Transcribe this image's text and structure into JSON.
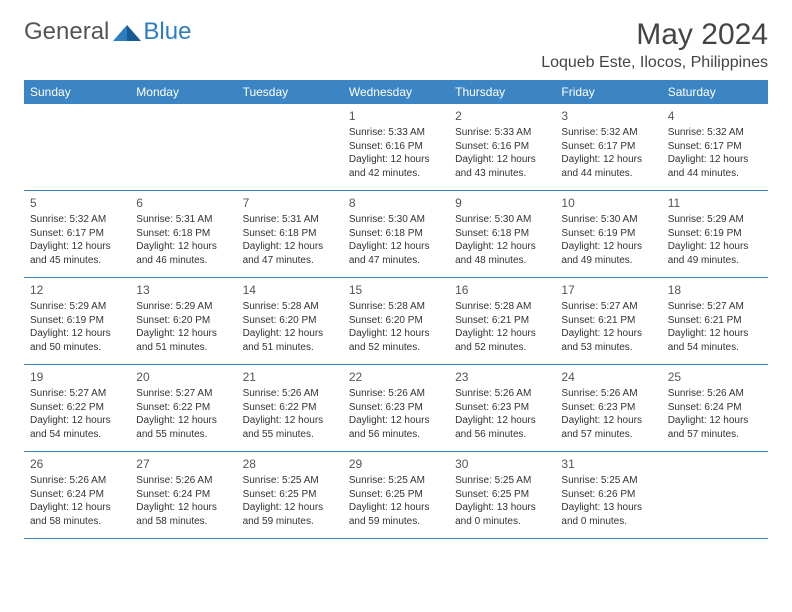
{
  "logo": {
    "text_general": "General",
    "text_blue": "Blue"
  },
  "title": "May 2024",
  "location": "Loqueb Este, Ilocos, Philippines",
  "colors": {
    "header_bar": "#3b85c4",
    "header_text": "#ffffff",
    "body_text": "#333333",
    "title_text": "#444444",
    "logo_gray": "#555555",
    "logo_blue": "#2d7dc0",
    "border": "#3b85c4",
    "background": "#ffffff"
  },
  "weekdays": [
    "Sunday",
    "Monday",
    "Tuesday",
    "Wednesday",
    "Thursday",
    "Friday",
    "Saturday"
  ],
  "weeks": [
    [
      {
        "day": "",
        "sunrise": "",
        "sunset": "",
        "daylight": ""
      },
      {
        "day": "",
        "sunrise": "",
        "sunset": "",
        "daylight": ""
      },
      {
        "day": "",
        "sunrise": "",
        "sunset": "",
        "daylight": ""
      },
      {
        "day": "1",
        "sunrise": "Sunrise: 5:33 AM",
        "sunset": "Sunset: 6:16 PM",
        "daylight": "Daylight: 12 hours and 42 minutes."
      },
      {
        "day": "2",
        "sunrise": "Sunrise: 5:33 AM",
        "sunset": "Sunset: 6:16 PM",
        "daylight": "Daylight: 12 hours and 43 minutes."
      },
      {
        "day": "3",
        "sunrise": "Sunrise: 5:32 AM",
        "sunset": "Sunset: 6:17 PM",
        "daylight": "Daylight: 12 hours and 44 minutes."
      },
      {
        "day": "4",
        "sunrise": "Sunrise: 5:32 AM",
        "sunset": "Sunset: 6:17 PM",
        "daylight": "Daylight: 12 hours and 44 minutes."
      }
    ],
    [
      {
        "day": "5",
        "sunrise": "Sunrise: 5:32 AM",
        "sunset": "Sunset: 6:17 PM",
        "daylight": "Daylight: 12 hours and 45 minutes."
      },
      {
        "day": "6",
        "sunrise": "Sunrise: 5:31 AM",
        "sunset": "Sunset: 6:18 PM",
        "daylight": "Daylight: 12 hours and 46 minutes."
      },
      {
        "day": "7",
        "sunrise": "Sunrise: 5:31 AM",
        "sunset": "Sunset: 6:18 PM",
        "daylight": "Daylight: 12 hours and 47 minutes."
      },
      {
        "day": "8",
        "sunrise": "Sunrise: 5:30 AM",
        "sunset": "Sunset: 6:18 PM",
        "daylight": "Daylight: 12 hours and 47 minutes."
      },
      {
        "day": "9",
        "sunrise": "Sunrise: 5:30 AM",
        "sunset": "Sunset: 6:18 PM",
        "daylight": "Daylight: 12 hours and 48 minutes."
      },
      {
        "day": "10",
        "sunrise": "Sunrise: 5:30 AM",
        "sunset": "Sunset: 6:19 PM",
        "daylight": "Daylight: 12 hours and 49 minutes."
      },
      {
        "day": "11",
        "sunrise": "Sunrise: 5:29 AM",
        "sunset": "Sunset: 6:19 PM",
        "daylight": "Daylight: 12 hours and 49 minutes."
      }
    ],
    [
      {
        "day": "12",
        "sunrise": "Sunrise: 5:29 AM",
        "sunset": "Sunset: 6:19 PM",
        "daylight": "Daylight: 12 hours and 50 minutes."
      },
      {
        "day": "13",
        "sunrise": "Sunrise: 5:29 AM",
        "sunset": "Sunset: 6:20 PM",
        "daylight": "Daylight: 12 hours and 51 minutes."
      },
      {
        "day": "14",
        "sunrise": "Sunrise: 5:28 AM",
        "sunset": "Sunset: 6:20 PM",
        "daylight": "Daylight: 12 hours and 51 minutes."
      },
      {
        "day": "15",
        "sunrise": "Sunrise: 5:28 AM",
        "sunset": "Sunset: 6:20 PM",
        "daylight": "Daylight: 12 hours and 52 minutes."
      },
      {
        "day": "16",
        "sunrise": "Sunrise: 5:28 AM",
        "sunset": "Sunset: 6:21 PM",
        "daylight": "Daylight: 12 hours and 52 minutes."
      },
      {
        "day": "17",
        "sunrise": "Sunrise: 5:27 AM",
        "sunset": "Sunset: 6:21 PM",
        "daylight": "Daylight: 12 hours and 53 minutes."
      },
      {
        "day": "18",
        "sunrise": "Sunrise: 5:27 AM",
        "sunset": "Sunset: 6:21 PM",
        "daylight": "Daylight: 12 hours and 54 minutes."
      }
    ],
    [
      {
        "day": "19",
        "sunrise": "Sunrise: 5:27 AM",
        "sunset": "Sunset: 6:22 PM",
        "daylight": "Daylight: 12 hours and 54 minutes."
      },
      {
        "day": "20",
        "sunrise": "Sunrise: 5:27 AM",
        "sunset": "Sunset: 6:22 PM",
        "daylight": "Daylight: 12 hours and 55 minutes."
      },
      {
        "day": "21",
        "sunrise": "Sunrise: 5:26 AM",
        "sunset": "Sunset: 6:22 PM",
        "daylight": "Daylight: 12 hours and 55 minutes."
      },
      {
        "day": "22",
        "sunrise": "Sunrise: 5:26 AM",
        "sunset": "Sunset: 6:23 PM",
        "daylight": "Daylight: 12 hours and 56 minutes."
      },
      {
        "day": "23",
        "sunrise": "Sunrise: 5:26 AM",
        "sunset": "Sunset: 6:23 PM",
        "daylight": "Daylight: 12 hours and 56 minutes."
      },
      {
        "day": "24",
        "sunrise": "Sunrise: 5:26 AM",
        "sunset": "Sunset: 6:23 PM",
        "daylight": "Daylight: 12 hours and 57 minutes."
      },
      {
        "day": "25",
        "sunrise": "Sunrise: 5:26 AM",
        "sunset": "Sunset: 6:24 PM",
        "daylight": "Daylight: 12 hours and 57 minutes."
      }
    ],
    [
      {
        "day": "26",
        "sunrise": "Sunrise: 5:26 AM",
        "sunset": "Sunset: 6:24 PM",
        "daylight": "Daylight: 12 hours and 58 minutes."
      },
      {
        "day": "27",
        "sunrise": "Sunrise: 5:26 AM",
        "sunset": "Sunset: 6:24 PM",
        "daylight": "Daylight: 12 hours and 58 minutes."
      },
      {
        "day": "28",
        "sunrise": "Sunrise: 5:25 AM",
        "sunset": "Sunset: 6:25 PM",
        "daylight": "Daylight: 12 hours and 59 minutes."
      },
      {
        "day": "29",
        "sunrise": "Sunrise: 5:25 AM",
        "sunset": "Sunset: 6:25 PM",
        "daylight": "Daylight: 12 hours and 59 minutes."
      },
      {
        "day": "30",
        "sunrise": "Sunrise: 5:25 AM",
        "sunset": "Sunset: 6:25 PM",
        "daylight": "Daylight: 13 hours and 0 minutes."
      },
      {
        "day": "31",
        "sunrise": "Sunrise: 5:25 AM",
        "sunset": "Sunset: 6:26 PM",
        "daylight": "Daylight: 13 hours and 0 minutes."
      },
      {
        "day": "",
        "sunrise": "",
        "sunset": "",
        "daylight": ""
      }
    ]
  ]
}
